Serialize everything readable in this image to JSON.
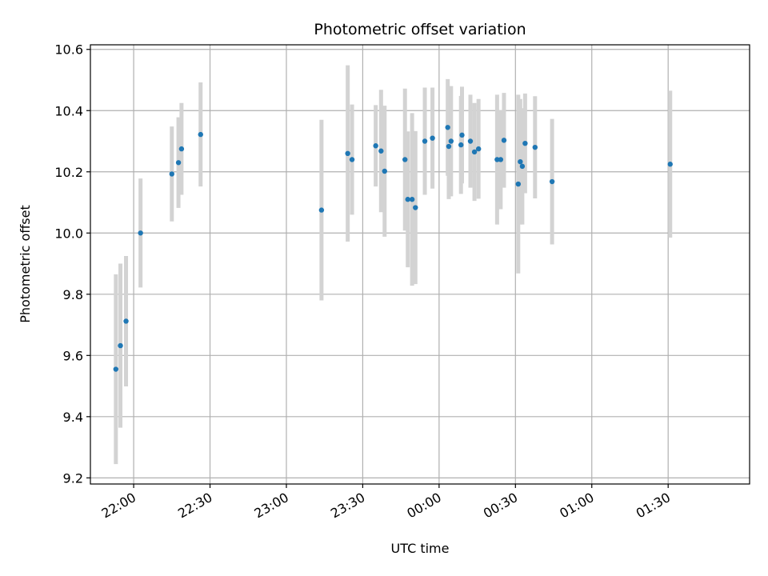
{
  "chart_data": {
    "type": "scatter",
    "title": "Photometric offset variation",
    "xlabel": "UTC time",
    "ylabel": "Photometric offset",
    "x_tick_labels": [
      "22:00",
      "22:30",
      "23:00",
      "23:30",
      "00:00",
      "00:30",
      "01:00",
      "01:30"
    ],
    "x_tick_values": [
      "22:00",
      "22:30",
      "23:00",
      "23:30",
      "24:00",
      "24:30",
      "25:00",
      "25:30"
    ],
    "xlim": [
      "21:43",
      "26:02"
    ],
    "y_tick_labels": [
      "9.2",
      "9.4",
      "9.6",
      "9.8",
      "10.0",
      "10.2",
      "10.4",
      "10.6"
    ],
    "y_tick_values": [
      9.2,
      9.4,
      9.6,
      9.8,
      10.0,
      10.2,
      10.4,
      10.6
    ],
    "ylim": [
      9.18,
      10.615
    ],
    "grid": true,
    "colors": {
      "point": "#1f77b4",
      "errorbar": "#d3d3d3",
      "grid": "#b0b0b0"
    },
    "points": [
      {
        "x": "21:53:00",
        "y": 9.555,
        "err": 0.31
      },
      {
        "x": "21:54:48",
        "y": 9.632,
        "err": 0.268
      },
      {
        "x": "21:57:00",
        "y": 9.712,
        "err": 0.213
      },
      {
        "x": "22:02:42",
        "y": 10.0,
        "err": 0.178
      },
      {
        "x": "22:15:00",
        "y": 10.193,
        "err": 0.155
      },
      {
        "x": "22:17:36",
        "y": 10.23,
        "err": 0.148
      },
      {
        "x": "22:18:48",
        "y": 10.275,
        "err": 0.15
      },
      {
        "x": "22:26:18",
        "y": 10.322,
        "err": 0.17
      },
      {
        "x": "23:13:48",
        "y": 10.075,
        "err": 0.295
      },
      {
        "x": "23:24:06",
        "y": 10.26,
        "err": 0.288
      },
      {
        "x": "23:25:48",
        "y": 10.24,
        "err": 0.18
      },
      {
        "x": "23:35:06",
        "y": 10.285,
        "err": 0.133
      },
      {
        "x": "23:37:12",
        "y": 10.268,
        "err": 0.2
      },
      {
        "x": "23:38:36",
        "y": 10.202,
        "err": 0.214
      },
      {
        "x": "23:46:36",
        "y": 10.24,
        "err": 0.232
      },
      {
        "x": "23:47:42",
        "y": 10.11,
        "err": 0.222
      },
      {
        "x": "23:49:24",
        "y": 10.11,
        "err": 0.282
      },
      {
        "x": "23:50:42",
        "y": 10.083,
        "err": 0.25
      },
      {
        "x": "23:54:24",
        "y": 10.3,
        "err": 0.175
      },
      {
        "x": "23:57:24",
        "y": 10.31,
        "err": 0.165
      },
      {
        "x": "24:03:24",
        "y": 10.345,
        "err": 0.158
      },
      {
        "x": "24:03:48",
        "y": 10.283,
        "err": 0.172
      },
      {
        "x": "24:04:42",
        "y": 10.3,
        "err": 0.18
      },
      {
        "x": "24:08:36",
        "y": 10.288,
        "err": 0.16
      },
      {
        "x": "24:09:00",
        "y": 10.32,
        "err": 0.158
      },
      {
        "x": "24:12:18",
        "y": 10.3,
        "err": 0.152
      },
      {
        "x": "24:13:54",
        "y": 10.265,
        "err": 0.16
      },
      {
        "x": "24:15:30",
        "y": 10.275,
        "err": 0.163
      },
      {
        "x": "24:22:48",
        "y": 10.24,
        "err": 0.212
      },
      {
        "x": "24:24:12",
        "y": 10.24,
        "err": 0.162
      },
      {
        "x": "24:25:30",
        "y": 10.303,
        "err": 0.155
      },
      {
        "x": "24:31:06",
        "y": 10.16,
        "err": 0.292
      },
      {
        "x": "24:31:54",
        "y": 10.233,
        "err": 0.205
      },
      {
        "x": "24:32:42",
        "y": 10.218,
        "err": 0.19
      },
      {
        "x": "24:33:48",
        "y": 10.293,
        "err": 0.163
      },
      {
        "x": "24:37:42",
        "y": 10.28,
        "err": 0.167
      },
      {
        "x": "24:44:24",
        "y": 10.168,
        "err": 0.205
      },
      {
        "x": "25:30:48",
        "y": 10.225,
        "err": 0.24
      }
    ]
  }
}
